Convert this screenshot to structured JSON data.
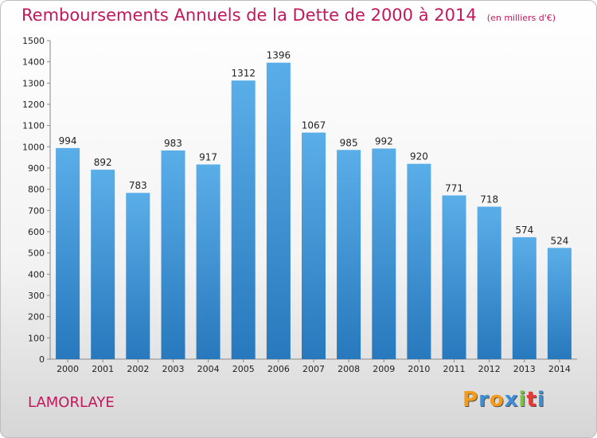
{
  "header": {
    "title": "Remboursements Annuels de la Dette de 2000 à 2014",
    "unit": "(en milliers d'€)"
  },
  "footer": {
    "commune": "LAMORLAYE",
    "logo": [
      "P",
      "r",
      "o",
      "x",
      "i",
      "t",
      "i"
    ],
    "logo_colors": [
      "#f59b1c",
      "#3a8fd8",
      "#f59b1c",
      "#3a8fd8",
      "#7cc242",
      "#e53935",
      "#3a8fd8"
    ]
  },
  "colors": {
    "bar_top": "#5aaee8",
    "bar_bottom": "#2878bd",
    "title": "#c2185b"
  },
  "chart_data": {
    "type": "bar",
    "title": "Remboursements Annuels de la Dette de 2000 à 2014",
    "xlabel": "",
    "ylabel": "",
    "categories": [
      "2000",
      "2001",
      "2002",
      "2003",
      "2004",
      "2005",
      "2006",
      "2007",
      "2008",
      "2009",
      "2010",
      "2011",
      "2012",
      "2013",
      "2014"
    ],
    "values": [
      994,
      892,
      783,
      983,
      917,
      1312,
      1396,
      1067,
      985,
      992,
      920,
      771,
      718,
      574,
      524
    ],
    "ylim": [
      0,
      1500
    ],
    "yticks": [
      0,
      100,
      200,
      300,
      400,
      500,
      600,
      700,
      800,
      900,
      1000,
      1100,
      1200,
      1300,
      1400,
      1500
    ],
    "grid": false,
    "legend": "none"
  }
}
